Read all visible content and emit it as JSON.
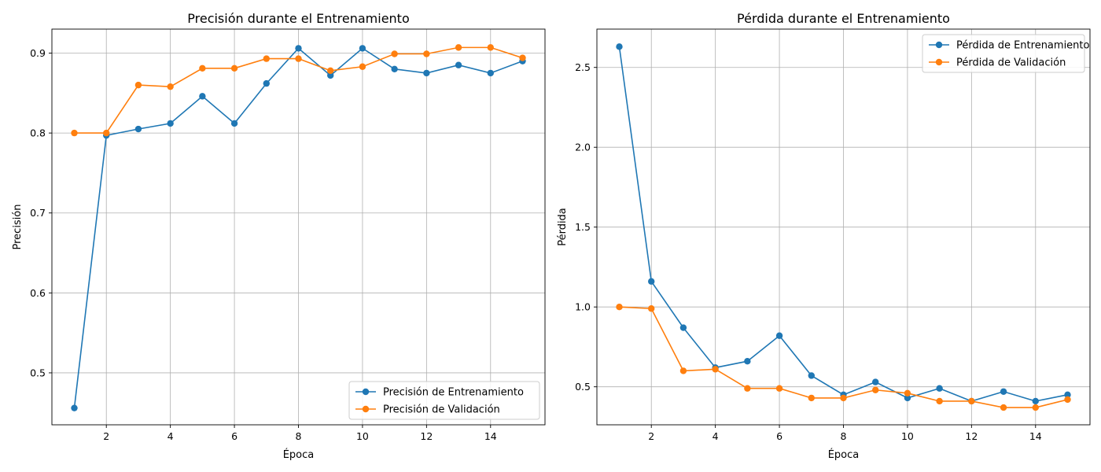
{
  "chart_data": [
    {
      "type": "line",
      "title": "Precisión durante el Entrenamiento",
      "xlabel": "Época",
      "ylabel": "Precisión",
      "x": [
        1,
        2,
        3,
        4,
        5,
        6,
        7,
        8,
        9,
        10,
        11,
        12,
        13,
        14,
        15
      ],
      "xlim": [
        0.3,
        15.7
      ],
      "ylim": [
        0.435,
        0.93
      ],
      "xticks": [
        2,
        4,
        6,
        8,
        10,
        12,
        14
      ],
      "yticks": [
        0.5,
        0.6,
        0.7,
        0.8,
        0.9
      ],
      "ytick_labels": [
        "0.5",
        "0.6",
        "0.7",
        "0.8",
        "0.9"
      ],
      "grid": true,
      "legend_position": "lower right",
      "series": [
        {
          "name": "Precisión de Entrenamiento",
          "color": "#1f77b4",
          "values": [
            0.456,
            0.797,
            0.805,
            0.812,
            0.846,
            0.812,
            0.862,
            0.906,
            0.872,
            0.906,
            0.88,
            0.875,
            0.885,
            0.875,
            0.89
          ]
        },
        {
          "name": "Precisión de Validación",
          "color": "#ff7f0e",
          "values": [
            0.8,
            0.8,
            0.86,
            0.858,
            0.881,
            0.881,
            0.893,
            0.893,
            0.878,
            0.883,
            0.899,
            0.899,
            0.907,
            0.907,
            0.894
          ]
        }
      ]
    },
    {
      "type": "line",
      "title": "Pérdida durante el Entrenamiento",
      "xlabel": "Época",
      "ylabel": "Pérdida",
      "x": [
        1,
        2,
        3,
        4,
        5,
        6,
        7,
        8,
        9,
        10,
        11,
        12,
        13,
        14,
        15
      ],
      "xlim": [
        0.3,
        15.7
      ],
      "ylim": [
        0.262,
        2.74
      ],
      "xticks": [
        2,
        4,
        6,
        8,
        10,
        12,
        14
      ],
      "yticks": [
        0.5,
        1.0,
        1.5,
        2.0,
        2.5
      ],
      "ytick_labels": [
        "0.5",
        "1.0",
        "1.5",
        "2.0",
        "2.5"
      ],
      "grid": true,
      "legend_position": "upper right",
      "series": [
        {
          "name": "Pérdida de Entrenamiento",
          "color": "#1f77b4",
          "values": [
            2.63,
            1.16,
            0.87,
            0.62,
            0.66,
            0.82,
            0.57,
            0.45,
            0.53,
            0.43,
            0.49,
            0.41,
            0.47,
            0.41,
            0.45
          ]
        },
        {
          "name": "Pérdida de Validación",
          "color": "#ff7f0e",
          "values": [
            1.0,
            0.99,
            0.6,
            0.61,
            0.49,
            0.49,
            0.43,
            0.43,
            0.48,
            0.46,
            0.41,
            0.41,
            0.37,
            0.37,
            0.42
          ]
        }
      ]
    }
  ]
}
